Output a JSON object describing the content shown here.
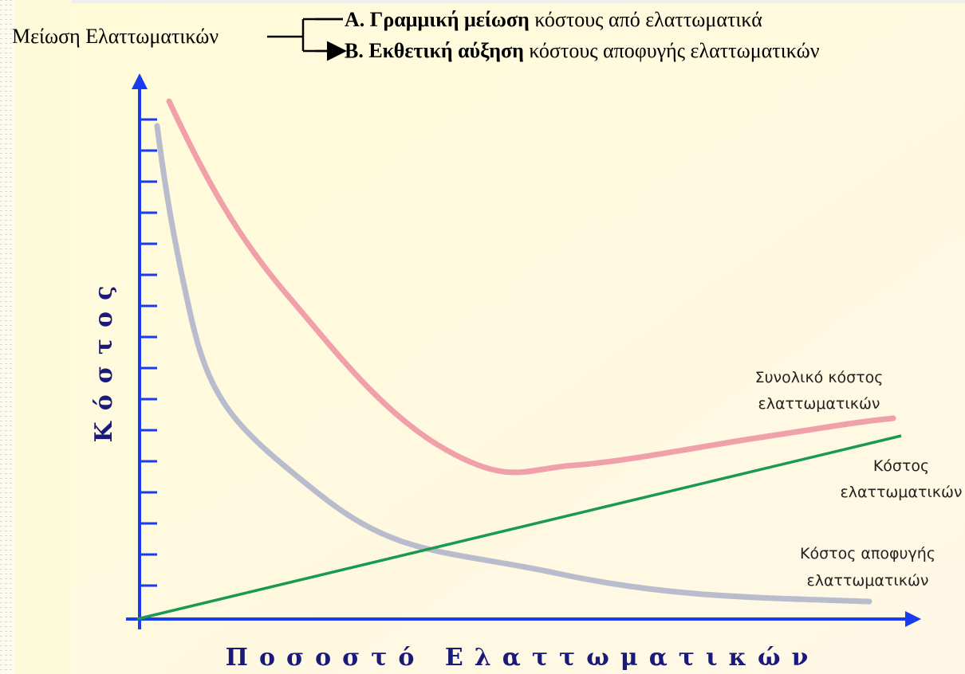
{
  "header": {
    "source": "Μείωση Ελαττωματικών",
    "items": [
      {
        "bold": "Α. Γραμμική μείωση",
        "rest": "κόστους από ελαττωματικά"
      },
      {
        "bold": "Β. Εκθετική αύξηση",
        "rest": "κόστους αποφυγής ελαττωματικών"
      }
    ]
  },
  "axes": {
    "y_label": "Κόστος",
    "x_label": "Ποσοστό Ελαττωματικών"
  },
  "curves": [
    {
      "lines": [
        "Συνολικό κόστος",
        "ελαττωματικών"
      ]
    },
    {
      "lines": [
        "Κόστος",
        "ελαττωματικών"
      ]
    },
    {
      "lines": [
        "Κόστος αποφυγής",
        "ελαττωματικών"
      ]
    }
  ]
}
